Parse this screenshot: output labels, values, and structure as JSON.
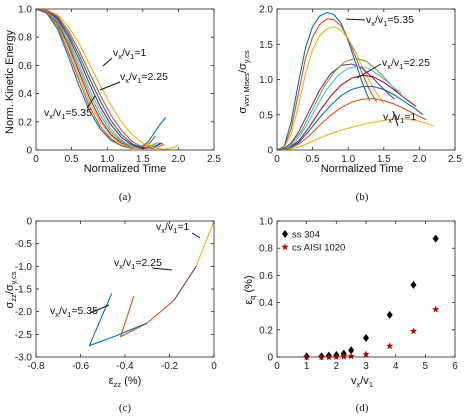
{
  "chart_data": [
    {
      "panel": "(a)",
      "type": "line",
      "xlabel": "Normalized Time",
      "ylabel": "Norm. Kinetic Energy",
      "xlim": [
        0,
        2.5
      ],
      "ylim": [
        0,
        1
      ],
      "xticks": [
        "0",
        "0.5",
        "1.0",
        "1.5",
        "2.0",
        "2.5"
      ],
      "yticks": [
        "0",
        "0.2",
        "0.4",
        "0.6",
        "0.8",
        "1.0"
      ],
      "annotations": [
        "vₓ/v₁=1",
        "vₓ/v₁=2.25",
        "vₓ/v₁=5.35"
      ],
      "series": [
        {
          "color": "#0072BD",
          "x": [
            0,
            0.15,
            0.3,
            0.45,
            0.6,
            0.75,
            0.9,
            1.05,
            1.2,
            1.35,
            1.5,
            1.58,
            1.66,
            1.74,
            1.82
          ],
          "y": [
            1,
            0.97,
            0.86,
            0.67,
            0.46,
            0.28,
            0.15,
            0.07,
            0.03,
            0.02,
            0.03,
            0.06,
            0.12,
            0.18,
            0.23
          ]
        },
        {
          "color": "#D95319",
          "x": [
            0,
            0.15,
            0.3,
            0.45,
            0.6,
            0.75,
            0.9,
            1.05,
            1.2,
            1.35,
            1.5,
            1.6,
            1.68
          ],
          "y": [
            1,
            0.975,
            0.88,
            0.7,
            0.5,
            0.31,
            0.17,
            0.08,
            0.03,
            0.01,
            0.02,
            0.05,
            0.1
          ]
        },
        {
          "color": "#EDB120",
          "x": [
            0,
            0.15,
            0.3,
            0.45,
            0.6,
            0.75,
            0.9,
            1.05,
            1.2,
            1.35,
            1.5,
            1.62
          ],
          "y": [
            1,
            0.98,
            0.89,
            0.73,
            0.53,
            0.34,
            0.2,
            0.1,
            0.04,
            0.015,
            0.01,
            0.04
          ]
        },
        {
          "color": "#7E2F8E",
          "x": [
            0,
            0.15,
            0.3,
            0.45,
            0.6,
            0.75,
            0.9,
            1.05,
            1.2,
            1.35,
            1.5,
            1.62
          ],
          "y": [
            1,
            0.98,
            0.9,
            0.75,
            0.56,
            0.37,
            0.22,
            0.11,
            0.05,
            0.02,
            0.01,
            0.03
          ]
        },
        {
          "color": "#77AC30",
          "x": [
            0,
            0.15,
            0.3,
            0.45,
            0.6,
            0.75,
            0.9,
            1.05,
            1.2,
            1.35,
            1.5,
            1.6,
            1.68
          ],
          "y": [
            1,
            0.985,
            0.91,
            0.77,
            0.59,
            0.4,
            0.25,
            0.13,
            0.06,
            0.02,
            0.01,
            0.02,
            0.05
          ]
        },
        {
          "color": "#4DBEEE",
          "x": [
            0,
            0.15,
            0.3,
            0.45,
            0.6,
            0.75,
            0.9,
            1.05,
            1.2,
            1.35,
            1.5,
            1.62,
            1.72
          ],
          "y": [
            1,
            0.985,
            0.92,
            0.79,
            0.62,
            0.43,
            0.28,
            0.15,
            0.07,
            0.025,
            0.01,
            0.02,
            0.06
          ]
        },
        {
          "color": "#A2142F",
          "x": [
            0,
            0.15,
            0.3,
            0.45,
            0.6,
            0.75,
            0.9,
            1.05,
            1.2,
            1.35,
            1.5,
            1.65,
            1.75
          ],
          "y": [
            1,
            0.99,
            0.93,
            0.81,
            0.65,
            0.47,
            0.31,
            0.18,
            0.09,
            0.035,
            0.01,
            0.02,
            0.05
          ]
        },
        {
          "color": "#0072BD",
          "x": [
            0,
            0.15,
            0.3,
            0.45,
            0.6,
            0.75,
            0.9,
            1.05,
            1.2,
            1.35,
            1.5,
            1.65,
            1.78
          ],
          "y": [
            1,
            0.99,
            0.94,
            0.83,
            0.68,
            0.51,
            0.35,
            0.21,
            0.11,
            0.045,
            0.015,
            0.02,
            0.05
          ]
        },
        {
          "color": "#D95319",
          "x": [
            0,
            0.15,
            0.3,
            0.45,
            0.6,
            0.75,
            0.9,
            1.05,
            1.2,
            1.35,
            1.5,
            1.65,
            1.8
          ],
          "y": [
            1,
            0.99,
            0.95,
            0.85,
            0.71,
            0.55,
            0.39,
            0.25,
            0.14,
            0.06,
            0.02,
            0.01,
            0.04
          ]
        },
        {
          "color": "#EDB120",
          "x": [
            0,
            0.15,
            0.3,
            0.45,
            0.6,
            0.75,
            0.9,
            1.05,
            1.2,
            1.35,
            1.5,
            1.65,
            1.8,
            1.95,
            2.0
          ],
          "y": [
            1,
            0.995,
            0.96,
            0.88,
            0.76,
            0.61,
            0.46,
            0.32,
            0.2,
            0.11,
            0.05,
            0.015,
            0.005,
            0.02,
            0.04
          ]
        }
      ]
    },
    {
      "panel": "(b)",
      "type": "line",
      "xlabel": "Normalized Time",
      "ylabel": "σvon Mises/σy,cs",
      "xlim": [
        0,
        2.5
      ],
      "ylim": [
        0,
        2
      ],
      "xticks": [
        "0",
        "0.5",
        "1.0",
        "1.5",
        "2.0",
        "2.5"
      ],
      "yticks": [
        "0",
        "0.5",
        "1.0",
        "1.5",
        "2.0"
      ],
      "annotations": [
        "vₓ/v₁=5.35",
        "vₓ/v₁=2.25",
        "vₓ/v₁=1"
      ],
      "series": [
        {
          "color": "#0072BD",
          "x": [
            0,
            0.1,
            0.2,
            0.3,
            0.4,
            0.5,
            0.6,
            0.7,
            0.8,
            0.9,
            1.0,
            1.1,
            1.2,
            1.3
          ],
          "y": [
            0,
            0.05,
            0.4,
            0.95,
            1.45,
            1.75,
            1.9,
            1.95,
            1.92,
            1.8,
            1.55,
            1.25,
            0.95,
            0.7
          ]
        },
        {
          "color": "#D95319",
          "x": [
            0,
            0.1,
            0.2,
            0.3,
            0.4,
            0.5,
            0.6,
            0.7,
            0.8,
            0.9,
            1.0,
            1.1,
            1.2,
            1.3,
            1.4
          ],
          "y": [
            0,
            0.04,
            0.3,
            0.8,
            1.3,
            1.6,
            1.78,
            1.86,
            1.85,
            1.76,
            1.58,
            1.33,
            1.08,
            0.85,
            0.68
          ]
        },
        {
          "color": "#EDB120",
          "x": [
            0,
            0.1,
            0.2,
            0.3,
            0.4,
            0.5,
            0.6,
            0.7,
            0.8,
            0.9,
            1.0,
            1.1,
            1.2,
            1.3,
            1.4,
            1.5
          ],
          "y": [
            0,
            0.03,
            0.22,
            0.62,
            1.08,
            1.42,
            1.62,
            1.72,
            1.75,
            1.7,
            1.58,
            1.4,
            1.18,
            0.98,
            0.8,
            0.66
          ]
        },
        {
          "color": "#7E2F8E",
          "x": [
            0,
            0.1,
            0.2,
            0.3,
            0.45,
            0.6,
            0.75,
            0.9,
            1.05,
            1.2,
            1.35,
            1.5,
            1.65
          ],
          "y": [
            0,
            0.02,
            0.1,
            0.25,
            0.55,
            0.85,
            1.08,
            1.2,
            1.22,
            1.16,
            1.02,
            0.86,
            0.72
          ]
        },
        {
          "color": "#77AC30",
          "x": [
            0,
            0.1,
            0.2,
            0.35,
            0.5,
            0.65,
            0.8,
            0.95,
            1.1,
            1.25,
            1.4,
            1.55,
            1.7
          ],
          "y": [
            0,
            0.01,
            0.08,
            0.28,
            0.58,
            0.88,
            1.1,
            1.25,
            1.3,
            1.26,
            1.14,
            0.98,
            0.82
          ]
        },
        {
          "color": "#4DBEEE",
          "x": [
            0,
            0.1,
            0.25,
            0.4,
            0.55,
            0.7,
            0.85,
            1.0,
            1.15,
            1.3,
            1.45,
            1.6,
            1.75
          ],
          "y": [
            0,
            0.01,
            0.1,
            0.32,
            0.6,
            0.86,
            1.05,
            1.16,
            1.19,
            1.15,
            1.05,
            0.92,
            0.8
          ]
        },
        {
          "color": "#A2142F",
          "x": [
            0,
            0.15,
            0.3,
            0.45,
            0.6,
            0.75,
            0.9,
            1.05,
            1.2,
            1.35,
            1.5,
            1.65,
            1.8,
            1.95
          ],
          "y": [
            0,
            0.02,
            0.12,
            0.32,
            0.55,
            0.76,
            0.92,
            1.02,
            1.06,
            1.04,
            0.96,
            0.85,
            0.73,
            0.62
          ]
        },
        {
          "color": "#0072BD",
          "x": [
            0,
            0.15,
            0.3,
            0.45,
            0.6,
            0.75,
            0.9,
            1.05,
            1.2,
            1.35,
            1.5,
            1.65,
            1.8,
            1.95,
            2.05
          ],
          "y": [
            0,
            0.02,
            0.1,
            0.27,
            0.46,
            0.63,
            0.77,
            0.86,
            0.9,
            0.9,
            0.86,
            0.78,
            0.68,
            0.58,
            0.5
          ]
        },
        {
          "color": "#D95319",
          "x": [
            0,
            0.15,
            0.3,
            0.45,
            0.6,
            0.75,
            0.9,
            1.05,
            1.2,
            1.35,
            1.5,
            1.65,
            1.8,
            1.95,
            2.1
          ],
          "y": [
            0,
            0.01,
            0.08,
            0.2,
            0.35,
            0.49,
            0.6,
            0.68,
            0.72,
            0.73,
            0.7,
            0.65,
            0.58,
            0.5,
            0.43
          ]
        },
        {
          "color": "#EDB120",
          "x": [
            0,
            0.15,
            0.3,
            0.45,
            0.6,
            0.75,
            0.9,
            1.05,
            1.2,
            1.35,
            1.5,
            1.65,
            1.8,
            1.95,
            2.1,
            2.2
          ],
          "y": [
            0,
            0.01,
            0.04,
            0.1,
            0.17,
            0.23,
            0.28,
            0.32,
            0.36,
            0.39,
            0.42,
            0.44,
            0.44,
            0.42,
            0.38,
            0.34
          ]
        }
      ]
    },
    {
      "panel": "(c)",
      "type": "line",
      "xlabel": "εzz (%)",
      "ylabel": "σzz/σy,cs",
      "xlim": [
        -0.8,
        0
      ],
      "ylim": [
        -3,
        0
      ],
      "xticks": [
        "-0.8",
        "-0.6",
        "-0.4",
        "-0.2",
        "0"
      ],
      "yticks": [
        "-3.0",
        "-2.5",
        "-2.0",
        "-1.5",
        "-1.0",
        "-0.5",
        "0"
      ],
      "annotations": [
        "vₓ/v₁=1",
        "vₓ/v₁=2.25",
        "vₓ/v₁=5.35"
      ],
      "series": [
        {
          "color": "#EDB120",
          "x": [
            0,
            -0.08
          ],
          "y": [
            0,
            -1.0
          ]
        },
        {
          "color": "#7E2F8E",
          "x": [
            -0.08,
            -0.18
          ],
          "y": [
            -1.0,
            -1.75
          ]
        },
        {
          "color": "#D95319",
          "x": [
            -0.18,
            -0.3,
            -0.42,
            -0.36
          ],
          "y": [
            -1.75,
            -2.25,
            -2.55,
            -1.65
          ]
        },
        {
          "color": "#0072BD",
          "x": [
            -0.3,
            -0.45,
            -0.56,
            -0.46
          ],
          "y": [
            -2.25,
            -2.55,
            -2.75,
            -1.6
          ]
        }
      ]
    },
    {
      "panel": "(d)",
      "type": "scatter",
      "xlabel": "vx/v1",
      "ylabel": "εq (%)",
      "xlim": [
        0,
        6
      ],
      "ylim": [
        0,
        1
      ],
      "xticks": [
        "0",
        "1",
        "2",
        "3",
        "4",
        "5",
        "6"
      ],
      "yticks": [
        "0",
        "0.2",
        "0.4",
        "0.6",
        "0.8",
        "1.0"
      ],
      "legend": "top-left",
      "series": [
        {
          "name": "ss 304",
          "color": "#000000",
          "marker": "diamond",
          "x": [
            1.0,
            1.5,
            1.75,
            2.0,
            2.25,
            2.5,
            3.0,
            3.8,
            4.6,
            5.35
          ],
          "y": [
            0.005,
            0.005,
            0.01,
            0.015,
            0.025,
            0.05,
            0.14,
            0.31,
            0.53,
            0.87
          ]
        },
        {
          "name": "cs AISI 1020",
          "color": "#C00000",
          "marker": "star",
          "x": [
            1.0,
            1.5,
            1.75,
            2.0,
            2.25,
            2.5,
            3.0,
            3.8,
            4.6,
            5.35
          ],
          "y": [
            0.0,
            0.0,
            0.0,
            0.0,
            0.003,
            0.005,
            0.02,
            0.08,
            0.19,
            0.35
          ]
        }
      ]
    }
  ],
  "panel_labels": [
    "(a)",
    "(b)",
    "(c)",
    "(d)"
  ]
}
